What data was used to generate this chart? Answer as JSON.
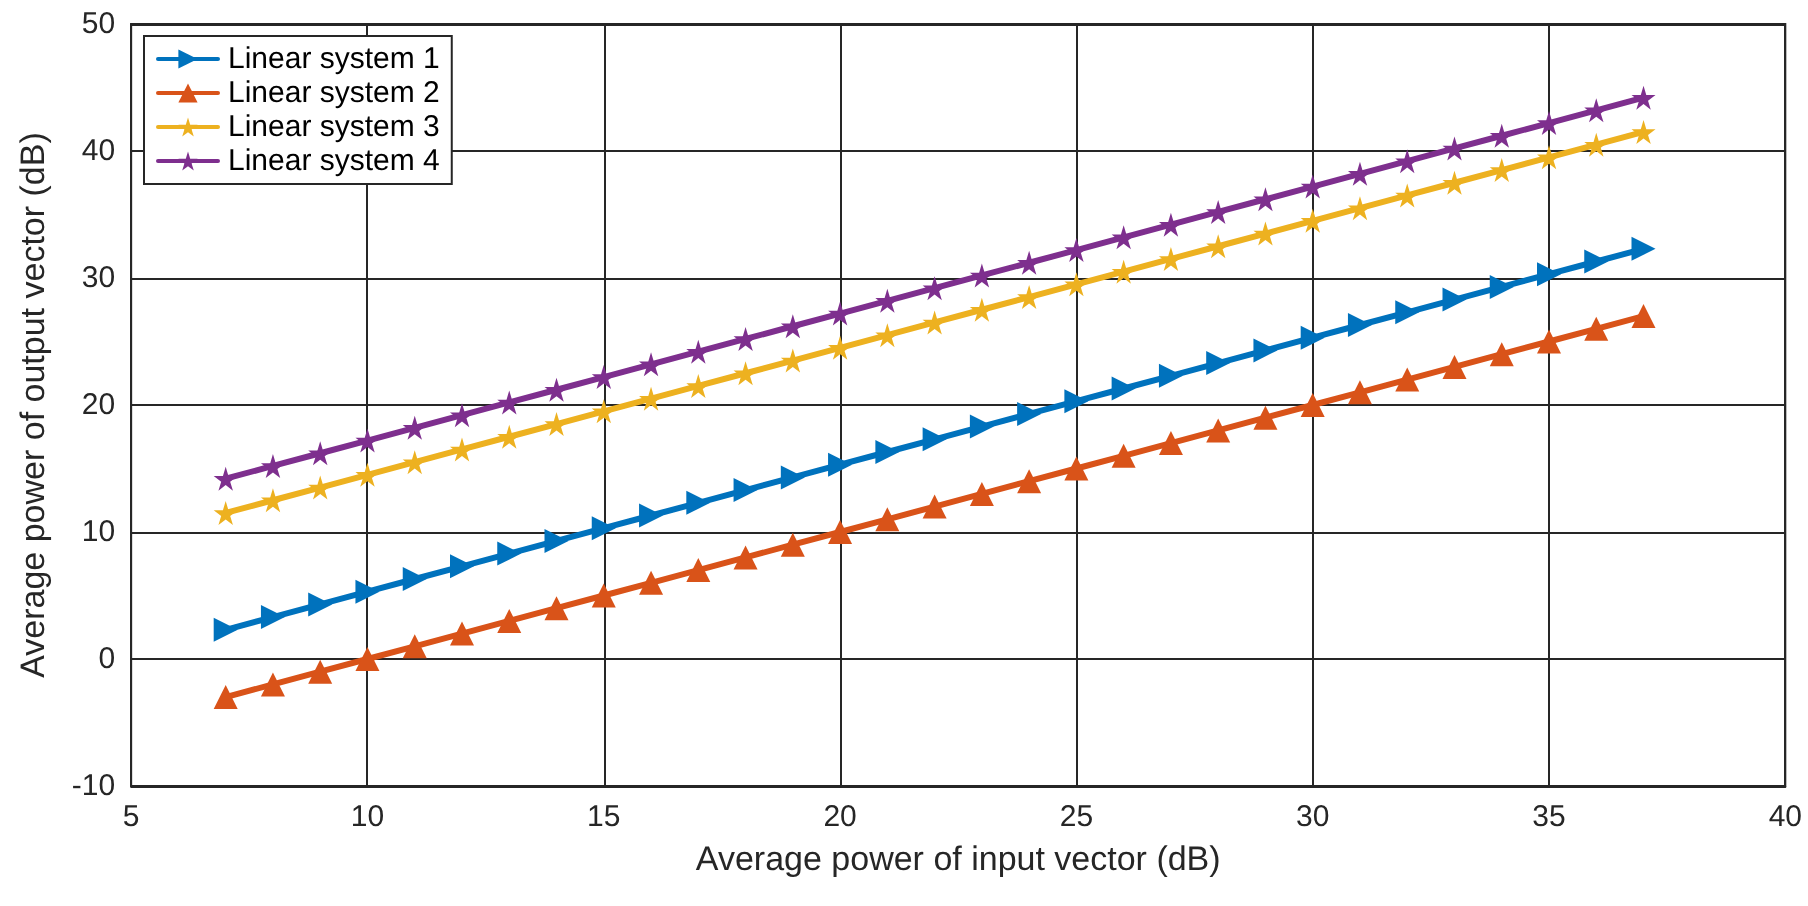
{
  "chart_data": {
    "type": "line",
    "xlabel": "Average power of input vector (dB)",
    "ylabel": "Average power of output vector (dB)",
    "x": [
      7,
      8,
      9,
      10,
      11,
      12,
      13,
      14,
      15,
      16,
      17,
      18,
      19,
      20,
      21,
      22,
      23,
      24,
      25,
      26,
      27,
      28,
      29,
      30,
      31,
      32,
      33,
      34,
      35,
      36,
      37
    ],
    "series": [
      {
        "name": "Linear system 1",
        "color": "#0072bd",
        "marker": "triangle-right",
        "values": [
          2.3,
          3.3,
          4.3,
          5.3,
          6.3,
          7.3,
          8.3,
          9.3,
          10.3,
          11.3,
          12.3,
          13.3,
          14.3,
          15.3,
          16.3,
          17.3,
          18.3,
          19.3,
          20.3,
          21.3,
          22.3,
          23.3,
          24.3,
          25.3,
          26.3,
          27.3,
          28.3,
          29.3,
          30.3,
          31.3,
          32.3
        ]
      },
      {
        "name": "Linear system 2",
        "color": "#d95319",
        "marker": "triangle",
        "values": [
          -3,
          -2,
          -1,
          0,
          1,
          2,
          3,
          4,
          5,
          6,
          7,
          8,
          9,
          10,
          11,
          12,
          13,
          14,
          15,
          16,
          17,
          18,
          19,
          20,
          21,
          22,
          23,
          24,
          25,
          26,
          27
        ]
      },
      {
        "name": "Linear system 3",
        "color": "#edb120",
        "marker": "star",
        "values": [
          11.5,
          12.5,
          13.5,
          14.5,
          15.5,
          16.5,
          17.5,
          18.5,
          19.5,
          20.5,
          21.5,
          22.5,
          23.5,
          24.5,
          25.5,
          26.5,
          27.5,
          28.5,
          29.5,
          30.5,
          31.5,
          32.5,
          33.5,
          34.5,
          35.5,
          36.5,
          37.5,
          38.5,
          39.5,
          40.5,
          41.5
        ]
      },
      {
        "name": "Linear system 4",
        "color": "#7e2f8e",
        "marker": "star",
        "values": [
          14.2,
          15.2,
          16.2,
          17.2,
          18.2,
          19.2,
          20.2,
          21.2,
          22.2,
          23.2,
          24.2,
          25.2,
          26.2,
          27.2,
          28.2,
          29.2,
          30.2,
          31.2,
          32.2,
          33.2,
          34.2,
          35.2,
          36.2,
          37.2,
          38.2,
          39.2,
          40.2,
          41.2,
          42.2,
          43.2,
          44.2
        ]
      }
    ],
    "xlim": [
      5,
      40
    ],
    "xticks": [
      5,
      10,
      15,
      20,
      25,
      30,
      35,
      40
    ],
    "ylim": [
      -10,
      50
    ],
    "yticks": [
      -10,
      0,
      10,
      20,
      30,
      40,
      50
    ],
    "grid": true,
    "legend": "top left",
    "line_style": "solid"
  }
}
